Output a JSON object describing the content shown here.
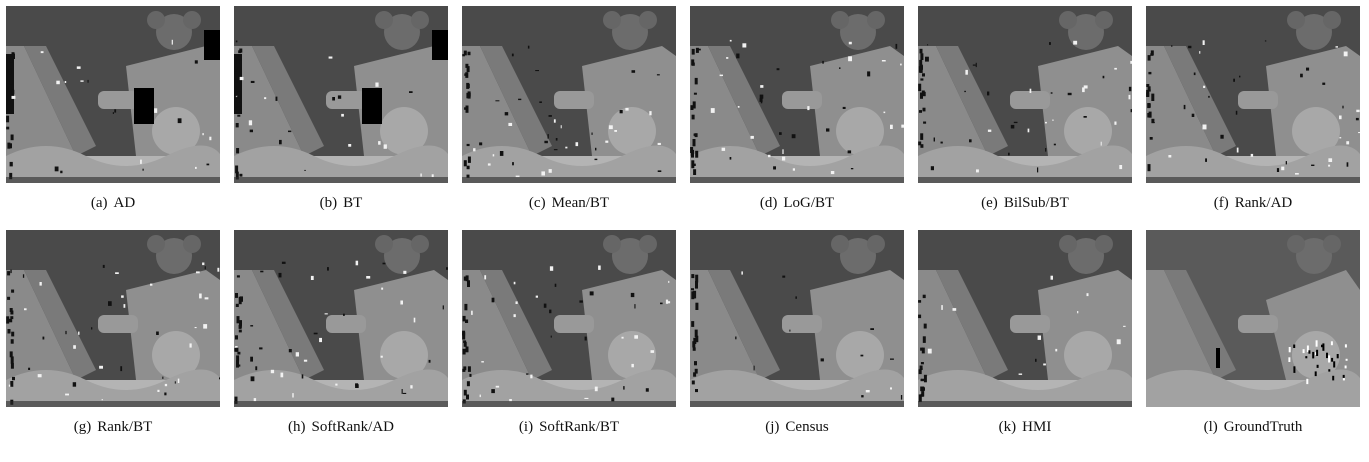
{
  "figure": {
    "panels": [
      {
        "label": "(a)",
        "caption": "AD",
        "variant": "holes"
      },
      {
        "label": "(b)",
        "caption": "BT",
        "variant": "holes"
      },
      {
        "label": "(c)",
        "caption": "Mean/BT",
        "variant": "noisy"
      },
      {
        "label": "(d)",
        "caption": "LoG/BT",
        "variant": "noisy"
      },
      {
        "label": "(e)",
        "caption": "BilSub/BT",
        "variant": "noisy"
      },
      {
        "label": "(f)",
        "caption": "Rank/AD",
        "variant": "noisy"
      },
      {
        "label": "(g)",
        "caption": "Rank/BT",
        "variant": "noisy"
      },
      {
        "label": "(h)",
        "caption": "SoftRank/AD",
        "variant": "noisy"
      },
      {
        "label": "(i)",
        "caption": "SoftRank/BT",
        "variant": "noisy"
      },
      {
        "label": "(j)",
        "caption": "Census",
        "variant": "clean"
      },
      {
        "label": "(k)",
        "caption": "HMI",
        "variant": "clean"
      },
      {
        "label": "(l)",
        "caption": "GroundTruth",
        "variant": "truth"
      }
    ]
  }
}
